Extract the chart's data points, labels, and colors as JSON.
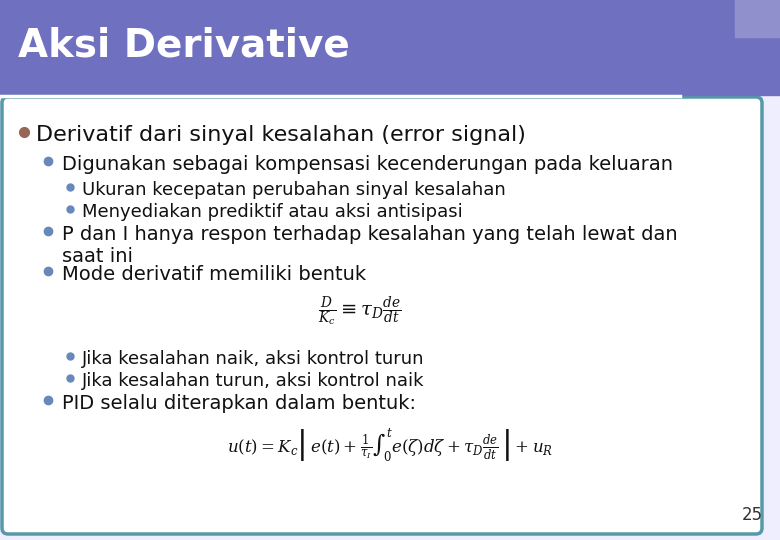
{
  "title": "Aksi Derivative",
  "title_bg_color": "#7070C0",
  "title_text_color": "#FFFFFF",
  "slide_bg_color": "#EEEEFF",
  "content_bg_color": "#FFFFFF",
  "border_color": "#5599AA",
  "separator_color": "#FFFFFF",
  "page_number": "25",
  "bullet0_color": "#996655",
  "bullet1_color": "#6688BB",
  "bullet2_color": "#6688BB",
  "text_color": "#111111",
  "formula1": "$\\frac{D}{K_c} \\equiv \\tau_D\\frac{de}{dt}$",
  "formula2": "$u(t) = K_c\\left|\\, e(t)+\\frac{1}{\\tau_I}\\int_0^{t} e(\\zeta)d\\zeta + \\tau_D\\frac{de}{dt}\\,\\right|+u_R$"
}
